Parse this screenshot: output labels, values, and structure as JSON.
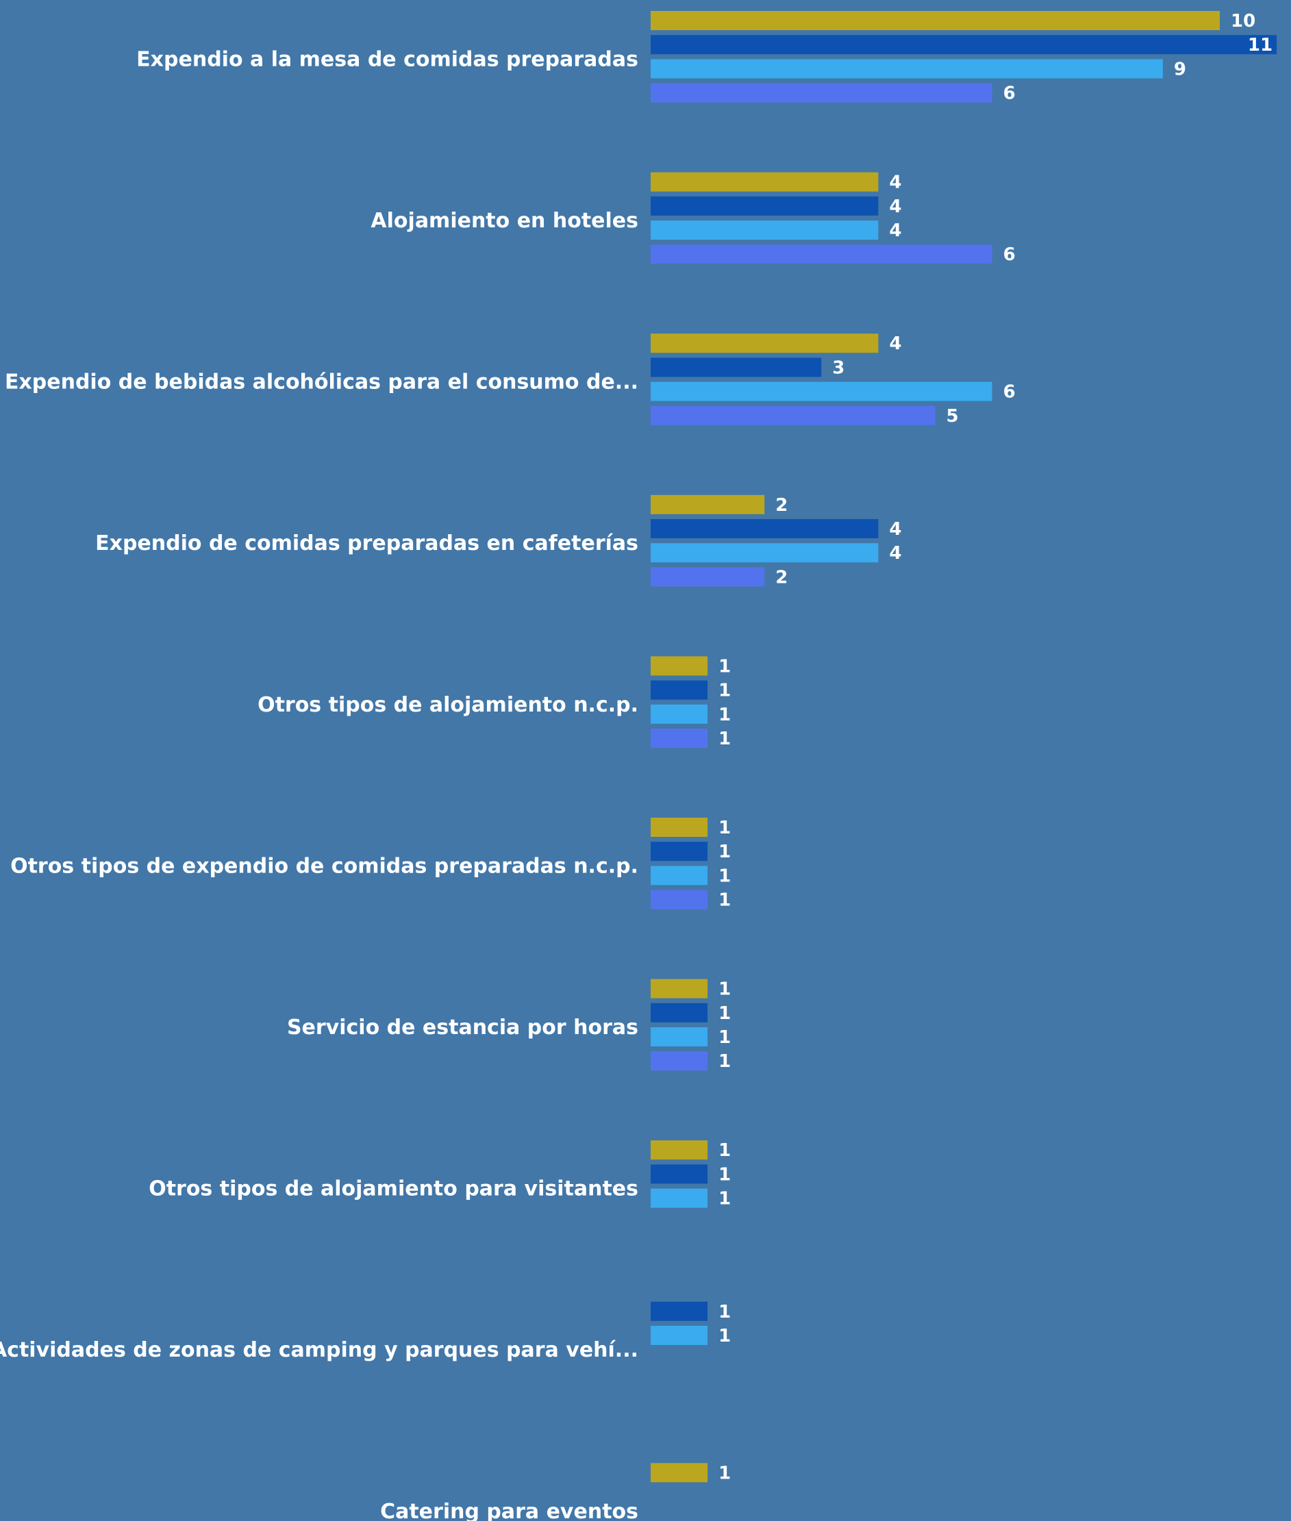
{
  "chart_data": {
    "type": "bar",
    "orientation": "horizontal",
    "legend": "none",
    "grid": false,
    "xlim": [
      0,
      11
    ],
    "categories": [
      "Expendio a la mesa de comidas preparadas",
      "Alojamiento en hoteles",
      "Expendio de bebidas alcohólicas para el consumo de...",
      "Expendio de comidas preparadas en cafeterías",
      "Otros tipos de alojamiento n.c.p.",
      "Otros tipos de expendio de comidas preparadas n.c.p.",
      "Servicio de estancia por horas",
      "Otros tipos de alojamiento para visitantes",
      "Actividades de zonas de camping y parques para vehí...",
      "Catering para eventos"
    ],
    "series": [
      {
        "color": "#bba71f",
        "values": [
          10,
          4,
          4,
          2,
          1,
          1,
          1,
          1,
          null,
          1
        ]
      },
      {
        "color": "#0d52b0",
        "values": [
          11,
          4,
          3,
          4,
          1,
          1,
          1,
          1,
          1,
          null
        ]
      },
      {
        "color": "#3aabee",
        "values": [
          9,
          4,
          6,
          4,
          1,
          1,
          1,
          1,
          1,
          null
        ]
      },
      {
        "color": "#5373ee",
        "values": [
          6,
          6,
          5,
          2,
          1,
          1,
          1,
          null,
          null,
          null
        ]
      }
    ],
    "colors": {
      "background": "#4277a8",
      "text": "#ffffff"
    }
  }
}
